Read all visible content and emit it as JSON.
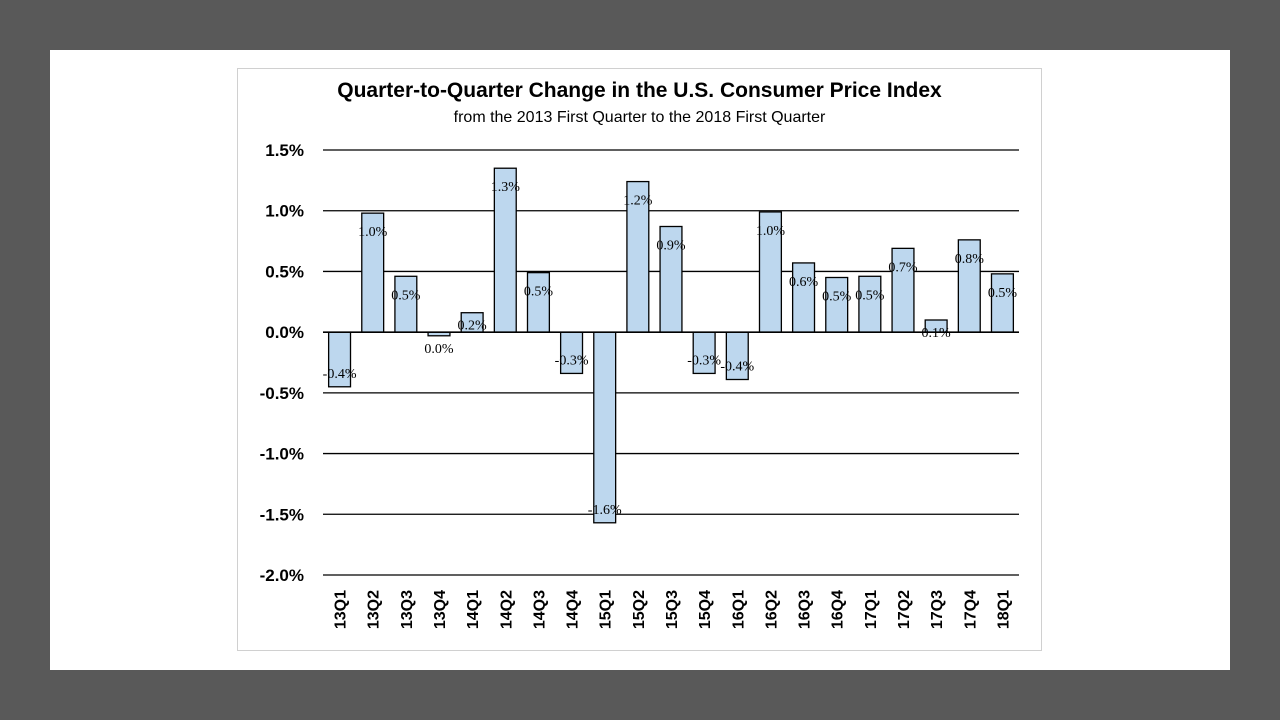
{
  "chart_data": {
    "type": "bar",
    "title": "Quarter-to-Quarter Change in the U.S. Consumer Price Index",
    "subtitle": "from the 2013 First Quarter to the 2018 First Quarter",
    "xlabel": "",
    "ylabel": "",
    "ylim": [
      -2.0,
      1.5
    ],
    "yticks": [
      1.5,
      1.0,
      0.5,
      0.0,
      -0.5,
      -1.0,
      -1.5,
      -2.0
    ],
    "ytick_labels": [
      "1.5%",
      "1.0%",
      "0.5%",
      "0.0%",
      "-0.5%",
      "-1.0%",
      "-1.5%",
      "-2.0%"
    ],
    "grid": true,
    "categories": [
      "13Q1",
      "13Q2",
      "13Q3",
      "13Q4",
      "14Q1",
      "14Q2",
      "14Q3",
      "14Q4",
      "15Q1",
      "15Q2",
      "15Q3",
      "15Q4",
      "16Q1",
      "16Q2",
      "16Q3",
      "16Q4",
      "17Q1",
      "17Q2",
      "17Q3",
      "17Q4",
      "18Q1"
    ],
    "values": [
      -0.45,
      0.98,
      0.46,
      -0.03,
      0.16,
      1.35,
      0.49,
      -0.34,
      -1.57,
      1.24,
      0.87,
      -0.34,
      -0.39,
      0.99,
      0.57,
      0.45,
      0.46,
      0.69,
      0.1,
      0.76,
      0.48
    ],
    "data_labels": [
      "-0.4%",
      "1.0%",
      "0.5%",
      "0.0%",
      "0.2%",
      "1.3%",
      "0.5%",
      "-0.3%",
      "-1.6%",
      "1.2%",
      "0.9%",
      "-0.3%",
      "-0.4%",
      "1.0%",
      "0.6%",
      "0.5%",
      "0.5%",
      "0.7%",
      "0.1%",
      "0.8%",
      "0.5%"
    ],
    "bar_color": "#bdd7ee",
    "bar_edge_color": "#000000"
  }
}
